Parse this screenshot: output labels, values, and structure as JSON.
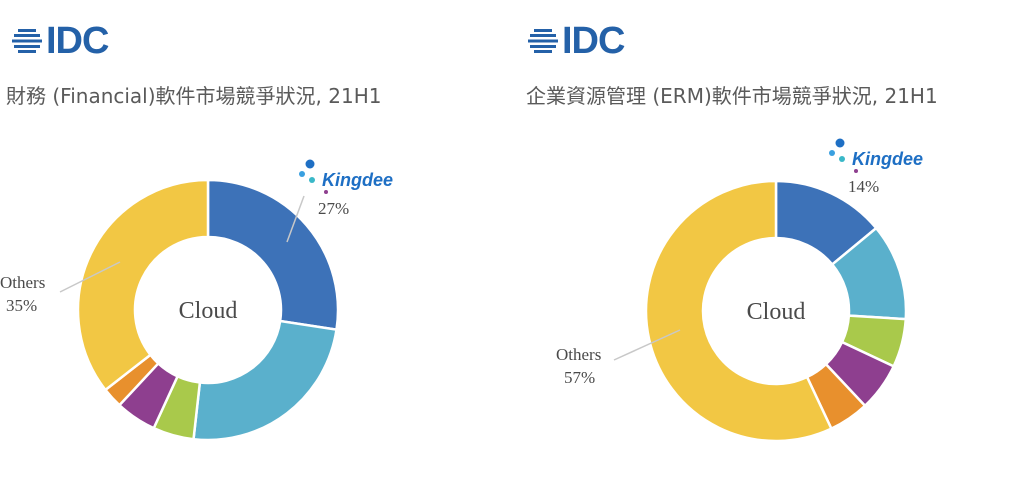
{
  "brand": {
    "logo_text": "IDC",
    "color": "#2461a8"
  },
  "chart_data": [
    {
      "type": "pie",
      "title": "財務 (Financial)軟件市場競爭狀況, 21H1",
      "center_label": "Cloud",
      "highlight_label": "Kingdee",
      "slices": [
        {
          "label": "Kingdee",
          "value": 27,
          "value_label": "27%",
          "color": "#3d72b8"
        },
        {
          "label": "",
          "value": 24,
          "color": "#5ab0cc"
        },
        {
          "label": "",
          "value": 5,
          "color": "#a9c94b"
        },
        {
          "label": "",
          "value": 5,
          "color": "#8e3f8f"
        },
        {
          "label": "",
          "value": 2.5,
          "color": "#e8902d"
        },
        {
          "label": "Others",
          "value": 35,
          "value_label": "35%",
          "color": "#f2c744"
        }
      ]
    },
    {
      "type": "pie",
      "title": "企業資源管理 (ERM)軟件市場競爭狀況, 21H1",
      "center_label": "Cloud",
      "highlight_label": "Kingdee",
      "slices": [
        {
          "label": "Kingdee",
          "value": 14,
          "value_label": "14%",
          "color": "#3d72b8"
        },
        {
          "label": "",
          "value": 12,
          "color": "#5ab0cc"
        },
        {
          "label": "",
          "value": 6,
          "color": "#a9c94b"
        },
        {
          "label": "",
          "value": 6,
          "color": "#8e3f8f"
        },
        {
          "label": "",
          "value": 5,
          "color": "#e8902d"
        },
        {
          "label": "Others",
          "value": 57,
          "value_label": "57%",
          "color": "#f2c744"
        }
      ]
    }
  ]
}
